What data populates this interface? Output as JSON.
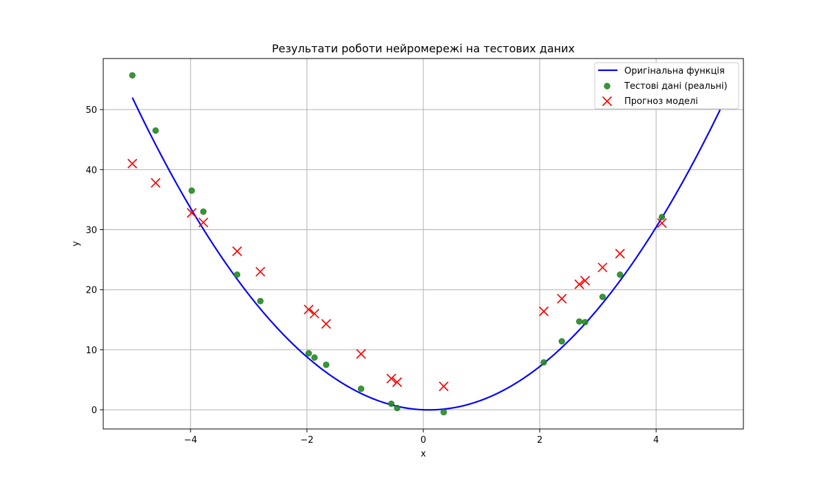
{
  "chart_data": {
    "type": "scatter",
    "title": "Результати роботи нейромережі на тестових даних",
    "xlabel": "x",
    "ylabel": "y",
    "xlim": [
      -5.5,
      5.5
    ],
    "ylim": [
      -3.2,
      58.5
    ],
    "x_ticks": [
      -4,
      -2,
      0,
      2,
      4
    ],
    "y_ticks": [
      0,
      10,
      20,
      30,
      40,
      50
    ],
    "x_tick_labels": [
      "−4",
      "−2",
      "0",
      "2",
      "4"
    ],
    "y_tick_labels": [
      "0",
      "10",
      "20",
      "30",
      "40",
      "50"
    ],
    "grid": true,
    "legend_position": "top-right",
    "series": [
      {
        "name": "Оригінальна функція",
        "kind": "line",
        "color": "#0000ff",
        "function": "2*x^2 - 0.4*x",
        "x_range": [
          -5.0,
          5.1
        ]
      },
      {
        "name": "Тестові дані (реальні)",
        "kind": "scatter",
        "marker": "circle",
        "color": "#228b22",
        "x": [
          -5.0,
          -4.6,
          -3.98,
          -3.78,
          -3.2,
          -2.8,
          -1.97,
          -1.87,
          -1.67,
          -1.07,
          -0.55,
          -0.45,
          0.35,
          2.07,
          2.38,
          2.68,
          2.78,
          3.08,
          3.38,
          4.1
        ],
        "y": [
          55.7,
          46.5,
          36.5,
          33.0,
          22.5,
          18.1,
          9.4,
          8.7,
          7.5,
          3.5,
          1.0,
          0.3,
          -0.4,
          7.9,
          11.4,
          14.7,
          14.6,
          18.8,
          22.5,
          32.1
        ]
      },
      {
        "name": "Прогноз моделі",
        "kind": "scatter",
        "marker": "x",
        "color": "#ff0000",
        "x": [
          -5.0,
          -4.6,
          -3.98,
          -3.78,
          -3.2,
          -2.8,
          -1.97,
          -1.87,
          -1.67,
          -1.07,
          -0.55,
          -0.45,
          0.35,
          2.07,
          2.38,
          2.68,
          2.78,
          3.08,
          3.38,
          4.1
        ],
        "y": [
          41.0,
          37.8,
          32.8,
          31.2,
          26.4,
          23.0,
          16.7,
          16.0,
          14.3,
          9.3,
          5.2,
          4.6,
          3.9,
          16.4,
          18.5,
          20.9,
          21.5,
          23.7,
          26.0,
          31.1
        ]
      }
    ]
  }
}
